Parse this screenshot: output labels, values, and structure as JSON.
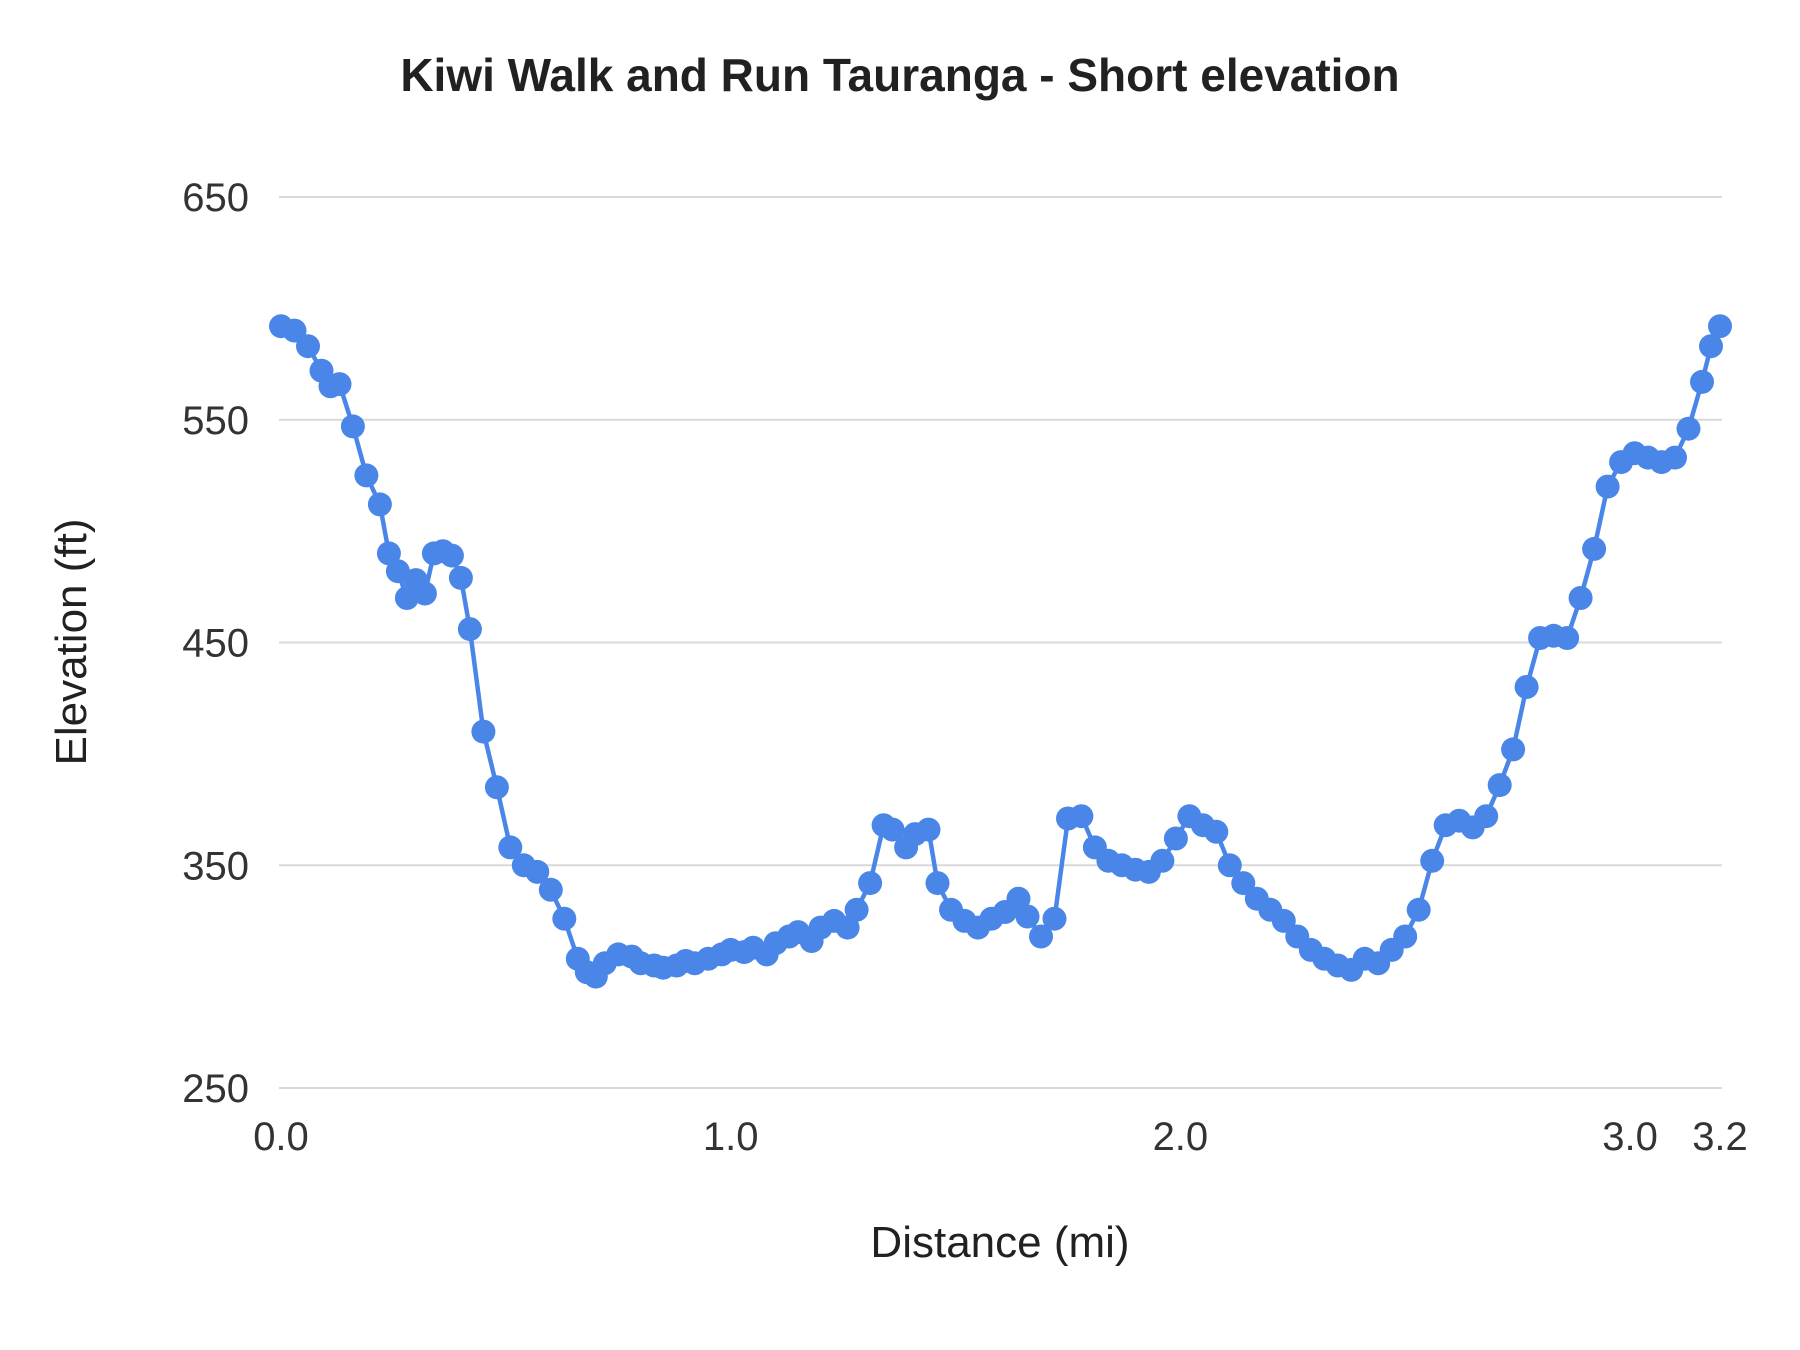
{
  "title": "Kiwi Walk and Run Tauranga - Short elevation",
  "chart_data": {
    "type": "line",
    "title": "Kiwi Walk and Run Tauranga - Short elevation",
    "xlabel": "Distance (mi)",
    "ylabel": "Elevation (ft)",
    "xlim": [
      0.0,
      3.2
    ],
    "ylim": [
      250,
      650
    ],
    "x_ticks": [
      0.0,
      1.0,
      2.0,
      3.0,
      3.2
    ],
    "x_tick_labels": [
      "0.0",
      "1.0",
      "2.0",
      "3.0",
      "3.2"
    ],
    "y_ticks": [
      250,
      350,
      450,
      550,
      650
    ],
    "y_tick_labels": [
      "250",
      "350",
      "450",
      "550",
      "650"
    ],
    "grid": "horizontal",
    "legend": "none",
    "line_color": "#4a86e8",
    "marker_color": "#4a86e8",
    "gridline_color": "#d9d9d9",
    "series": [
      {
        "name": "Elevation",
        "x": [
          0.0,
          0.03,
          0.06,
          0.09,
          0.11,
          0.13,
          0.16,
          0.19,
          0.22,
          0.24,
          0.26,
          0.28,
          0.3,
          0.32,
          0.34,
          0.36,
          0.38,
          0.4,
          0.42,
          0.45,
          0.48,
          0.51,
          0.54,
          0.57,
          0.6,
          0.63,
          0.66,
          0.68,
          0.7,
          0.72,
          0.75,
          0.78,
          0.8,
          0.83,
          0.85,
          0.88,
          0.9,
          0.92,
          0.95,
          0.98,
          1.0,
          1.03,
          1.05,
          1.08,
          1.1,
          1.13,
          1.15,
          1.18,
          1.2,
          1.23,
          1.26,
          1.28,
          1.31,
          1.34,
          1.36,
          1.39,
          1.41,
          1.44,
          1.46,
          1.49,
          1.52,
          1.55,
          1.58,
          1.61,
          1.64,
          1.66,
          1.69,
          1.72,
          1.75,
          1.78,
          1.81,
          1.84,
          1.87,
          1.9,
          1.93,
          1.96,
          1.99,
          2.02,
          2.05,
          2.08,
          2.11,
          2.14,
          2.17,
          2.2,
          2.23,
          2.26,
          2.29,
          2.32,
          2.35,
          2.38,
          2.41,
          2.44,
          2.47,
          2.5,
          2.53,
          2.56,
          2.59,
          2.62,
          2.65,
          2.68,
          2.71,
          2.74,
          2.77,
          2.8,
          2.83,
          2.86,
          2.89,
          2.92,
          2.95,
          2.98,
          3.01,
          3.04,
          3.07,
          3.1,
          3.13,
          3.16,
          3.18,
          3.2
        ],
        "y": [
          592,
          590,
          583,
          572,
          565,
          566,
          547,
          525,
          512,
          490,
          482,
          470,
          478,
          472,
          490,
          491,
          489,
          479,
          456,
          410,
          385,
          358,
          350,
          347,
          339,
          326,
          308,
          302,
          300,
          306,
          310,
          309,
          306,
          305,
          304,
          305,
          307,
          306,
          308,
          310,
          312,
          311,
          313,
          310,
          315,
          318,
          320,
          316,
          322,
          325,
          322,
          330,
          342,
          368,
          366,
          358,
          364,
          366,
          342,
          330,
          325,
          322,
          326,
          329,
          335,
          327,
          318,
          326,
          371,
          372,
          358,
          352,
          350,
          348,
          347,
          352,
          362,
          372,
          368,
          365,
          350,
          342,
          335,
          330,
          325,
          318,
          312,
          308,
          305,
          303,
          308,
          306,
          312,
          318,
          330,
          352,
          368,
          370,
          367,
          372,
          386,
          402,
          430,
          452,
          453,
          452,
          470,
          492,
          520,
          531,
          535,
          533,
          531,
          533,
          546,
          567,
          583,
          592
        ]
      }
    ]
  }
}
